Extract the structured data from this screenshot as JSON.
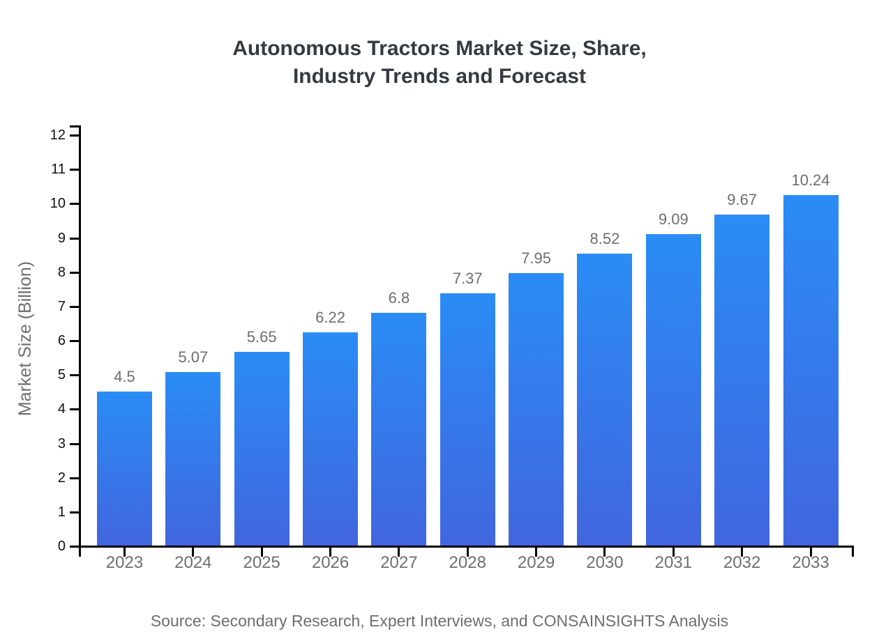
{
  "title": {
    "line1": "Autonomous Tractors Market Size, Share,",
    "line2": "Industry Trends and Forecast"
  },
  "source": "Source: Secondary Research, Expert Interviews, and CONSAINSIGHTS Analysis",
  "chart_data": {
    "type": "bar",
    "title": "Autonomous Tractors Market Size, Share, Industry Trends and Forecast",
    "categories": [
      "2023",
      "2024",
      "2025",
      "2026",
      "2027",
      "2028",
      "2029",
      "2030",
      "2031",
      "2032",
      "2033"
    ],
    "values": [
      4.5,
      5.07,
      5.65,
      6.22,
      6.8,
      7.37,
      7.95,
      8.52,
      9.09,
      9.67,
      10.24
    ],
    "value_labels": [
      "4.5",
      "5.07",
      "5.65",
      "6.22",
      "6.8",
      "7.37",
      "7.95",
      "8.52",
      "9.09",
      "9.67",
      "10.24"
    ],
    "xlabel": "",
    "ylabel": "Market Size (Billion)",
    "ylim": [
      0,
      12
    ],
    "ytick_step": 1,
    "yticks": [
      0,
      1,
      2,
      3,
      4,
      5,
      6,
      7,
      8,
      9,
      10,
      11,
      12
    ],
    "grid": false,
    "legend": "none",
    "colors": {
      "bar_gradient_top": "#2a8cf5",
      "bar_gradient_bottom": "#4166de",
      "axis": "#000000",
      "y_tick_label": "#111111",
      "x_tick_label": "#6e6e6e",
      "value_label": "#6e6e6e",
      "title": "#343a40",
      "source": "#6e6e6e"
    }
  }
}
